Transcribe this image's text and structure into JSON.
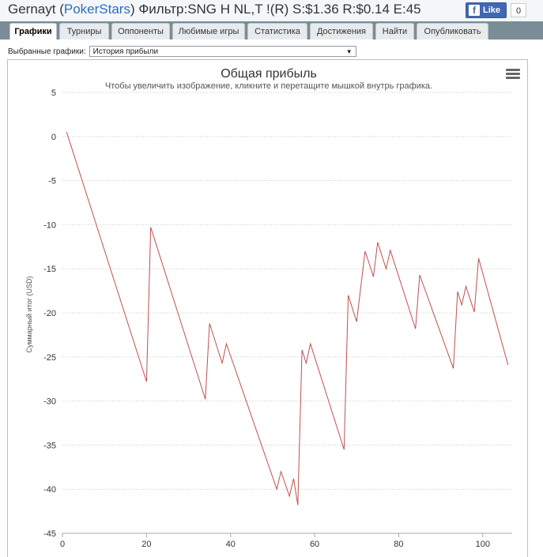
{
  "header": {
    "player": "Gernayt",
    "site": "PokerStars",
    "filter_text": "Фильтр:SNG H NL,T !(R) S:$1.36 R:$0.14 E:45",
    "fb_like_label": "Like",
    "fb_like_count": "0"
  },
  "tabs": [
    {
      "label": "Графики",
      "active": true
    },
    {
      "label": "Турниры"
    },
    {
      "label": "Оппоненты"
    },
    {
      "label": "Любимые игры"
    },
    {
      "label": "Статистика"
    },
    {
      "label": "Достижения"
    },
    {
      "label": "Найти"
    },
    {
      "label": "Опубликовать"
    }
  ],
  "graph_select": {
    "label": "Выбранные графики:",
    "value": "История прибыли"
  },
  "chart_data": {
    "type": "line",
    "title": "Общая прибыль",
    "subtitle": "Чтобы увеличить изображение, кликните и перетащите мышкой внутрь графика.",
    "ylabel": "Суммарный итог (USD)",
    "xlabel": "",
    "xlim": [
      0,
      107
    ],
    "ylim": [
      -45,
      5
    ],
    "xticks": [
      0,
      20,
      40,
      60,
      80,
      100
    ],
    "yticks": [
      5,
      0,
      -5,
      -10,
      -15,
      -20,
      -25,
      -30,
      -35,
      -40,
      -45
    ],
    "grid": true,
    "line_color": "#c0504d",
    "series": [
      {
        "x": [
          1,
          20,
          21,
          34,
          35,
          38,
          39,
          51,
          52,
          54,
          55,
          56,
          57,
          58,
          59,
          67,
          68,
          70,
          72,
          74,
          75,
          77,
          78,
          84,
          85,
          93,
          94,
          95,
          96,
          98,
          99,
          106
        ],
        "y": [
          0.5,
          -27.8,
          -10.3,
          -29.8,
          -21.2,
          -25.7,
          -23.5,
          -40,
          -38,
          -40.8,
          -38.8,
          -41.8,
          -24.2,
          -25.7,
          -23.5,
          -35.5,
          -18,
          -21,
          -13,
          -15.9,
          -12,
          -15,
          -12.9,
          -21.8,
          -15.7,
          -26.3,
          -17.6,
          -19.1,
          -17,
          -19.9,
          -13.8,
          -25.9
        ]
      }
    ]
  }
}
